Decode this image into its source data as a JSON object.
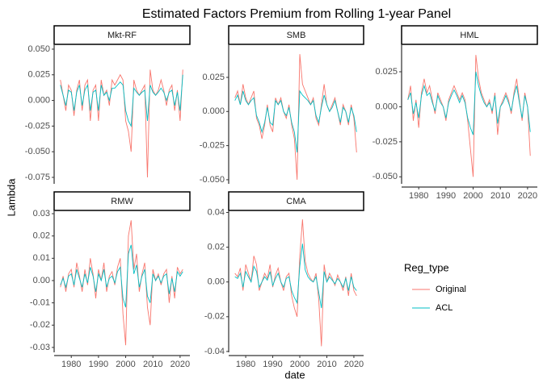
{
  "title": "Estimated Factors Premium from Rolling 1-year Panel",
  "x_label": "date",
  "y_label": "Lambda",
  "legend_title": "Reg_type",
  "chart_data": [
    {
      "type": "line",
      "title": "Mkt-RF",
      "xlim": [
        1973.7,
        2023.6
      ],
      "ylim": [
        -0.0813,
        0.0539
      ],
      "yticks": [
        {
          "value": 0.05,
          "label": "0.050"
        },
        0.025,
        {
          "value": 0,
          "label": "0.000"
        },
        -0.025,
        {
          "value": -0.05,
          "label": "-0.050"
        },
        -0.075
      ],
      "x": [
        1976,
        1977,
        1978,
        1979,
        1980,
        1981,
        1982,
        1983,
        1984,
        1985,
        1986,
        1987,
        1988,
        1989,
        1990,
        1991,
        1992,
        1993,
        1994,
        1995,
        1996,
        1997,
        1998,
        1999,
        2000,
        2001,
        2002,
        2003,
        2004,
        2005,
        2006,
        2007,
        2008,
        2009,
        2010,
        2011,
        2012,
        2013,
        2014,
        2015,
        2016,
        2017,
        2018,
        2019,
        2020,
        2021
      ],
      "series": [
        {
          "name": "Original",
          "color": "#F8766D",
          "values": [
            0.02,
            0.005,
            -0.01,
            0.015,
            0.01,
            -0.015,
            0.01,
            0.02,
            -0.01,
            0.015,
            0.02,
            -0.02,
            0.01,
            0.015,
            -0.02,
            0.02,
            0.005,
            0.01,
            -0.005,
            0.02,
            0.015,
            0.02,
            0.025,
            0.02,
            -0.02,
            -0.03,
            -0.05,
            0.02,
            0.01,
            0.005,
            0.01,
            0.015,
            -0.075,
            0.03,
            0.01,
            0.005,
            0.01,
            0.02,
            0.01,
            -0.005,
            0.01,
            0.015,
            -0.01,
            0.01,
            -0.02,
            0.03
          ]
        },
        {
          "name": "ACL",
          "color": "#00BFC4",
          "values": [
            0.015,
            0.005,
            -0.005,
            0.01,
            0.008,
            -0.01,
            0.008,
            0.015,
            -0.005,
            0.01,
            0.015,
            -0.01,
            0.008,
            0.01,
            -0.01,
            0.015,
            0.005,
            0.008,
            0,
            0.012,
            0.012,
            0.015,
            0.018,
            0.015,
            -0.01,
            -0.02,
            -0.025,
            0.012,
            0.008,
            0.005,
            0.008,
            0.01,
            -0.02,
            0.015,
            0.008,
            0.005,
            0.008,
            0.012,
            0.008,
            0,
            0.008,
            0.01,
            -0.005,
            0.008,
            -0.01,
            0.025
          ]
        }
      ]
    },
    {
      "type": "line",
      "title": "SMB",
      "xlim": [
        1973.7,
        2023.6
      ],
      "ylim": [
        -0.053,
        0.0486
      ],
      "yticks": [
        0.025,
        {
          "value": 0,
          "label": "0.000"
        },
        -0.025,
        {
          "value": -0.05,
          "label": "-0.050"
        }
      ],
      "x": [
        1976,
        1977,
        1978,
        1979,
        1980,
        1981,
        1982,
        1983,
        1984,
        1985,
        1986,
        1987,
        1988,
        1989,
        1990,
        1991,
        1992,
        1993,
        1994,
        1995,
        1996,
        1997,
        1998,
        1999,
        2000,
        2001,
        2002,
        2003,
        2004,
        2005,
        2006,
        2007,
        2008,
        2009,
        2010,
        2011,
        2012,
        2013,
        2014,
        2015,
        2016,
        2017,
        2018,
        2019,
        2020,
        2021
      ],
      "series": [
        {
          "name": "Original",
          "color": "#F8766D",
          "values": [
            0.01,
            0.015,
            0.005,
            0.02,
            0.01,
            0.005,
            0.01,
            0.015,
            -0.005,
            -0.01,
            -0.02,
            -0.01,
            0.005,
            -0.01,
            -0.015,
            0.01,
            0.005,
            0.01,
            0,
            -0.005,
            0.005,
            -0.01,
            -0.02,
            -0.05,
            0.042,
            0.02,
            0.015,
            0.01,
            0.005,
            0.01,
            -0.005,
            -0.01,
            0.005,
            0.02,
            0.005,
            0,
            0.005,
            0.01,
            0,
            -0.01,
            0.005,
            0,
            -0.01,
            0.005,
            -0.005,
            -0.03
          ]
        },
        {
          "name": "ACL",
          "color": "#00BFC4",
          "values": [
            0.008,
            0.012,
            0.005,
            0.015,
            0.008,
            0.005,
            0.008,
            0.01,
            -0.003,
            -0.008,
            -0.015,
            -0.008,
            0.003,
            -0.008,
            -0.01,
            0.008,
            0.005,
            0.008,
            0,
            -0.003,
            0.003,
            -0.008,
            -0.015,
            -0.03,
            0.015,
            0.012,
            0.01,
            0.008,
            0.005,
            0.008,
            -0.003,
            -0.008,
            0.003,
            0.012,
            0.005,
            0,
            0.003,
            0.008,
            0,
            -0.008,
            0.003,
            0,
            -0.008,
            0.003,
            -0.003,
            -0.015
          ]
        }
      ]
    },
    {
      "type": "line",
      "title": "HML",
      "xlim": [
        1973.7,
        2023.6
      ],
      "ylim": [
        -0.055,
        0.044
      ],
      "yticks": [
        0.025,
        {
          "value": 0,
          "label": "0.000"
        },
        -0.025,
        {
          "value": -0.05,
          "label": "-0.050"
        }
      ],
      "xticks": [
        1980,
        1990,
        2000,
        2010,
        2020
      ],
      "x": [
        1976,
        1977,
        1978,
        1979,
        1980,
        1981,
        1982,
        1983,
        1984,
        1985,
        1986,
        1987,
        1988,
        1989,
        1990,
        1991,
        1992,
        1993,
        1994,
        1995,
        1996,
        1997,
        1998,
        1999,
        2000,
        2001,
        2002,
        2003,
        2004,
        2005,
        2006,
        2007,
        2008,
        2009,
        2010,
        2011,
        2012,
        2013,
        2014,
        2015,
        2016,
        2017,
        2018,
        2019,
        2020,
        2021
      ],
      "series": [
        {
          "name": "Original",
          "color": "#F8766D",
          "values": [
            0.005,
            0.015,
            -0.01,
            0.005,
            -0.015,
            0.01,
            0.02,
            0.01,
            0.015,
            0.005,
            -0.005,
            0.01,
            0.005,
            0,
            -0.01,
            0.005,
            0.01,
            0.015,
            0.01,
            0.005,
            0.01,
            0.005,
            -0.01,
            -0.03,
            -0.05,
            0.037,
            0.02,
            0.01,
            0.005,
            0,
            0.005,
            -0.005,
            0.01,
            -0.02,
            0,
            0.005,
            0.01,
            0.005,
            -0.005,
            0.01,
            0.02,
            0.005,
            -0.01,
            0.01,
            0,
            -0.035
          ]
        },
        {
          "name": "ACL",
          "color": "#00BFC4",
          "values": [
            0.005,
            0.01,
            -0.005,
            0.003,
            -0.008,
            0.008,
            0.015,
            0.008,
            0.01,
            0.003,
            -0.003,
            0.008,
            0.003,
            0,
            -0.008,
            0.003,
            0.008,
            0.012,
            0.008,
            0.003,
            0.008,
            0.003,
            -0.008,
            -0.015,
            -0.02,
            0.025,
            0.015,
            0.008,
            0.003,
            0,
            0.003,
            -0.003,
            0.008,
            -0.012,
            0,
            0.003,
            0.008,
            0.003,
            -0.003,
            0.008,
            0.015,
            0.003,
            -0.008,
            0.008,
            0,
            -0.018
          ]
        }
      ]
    },
    {
      "type": "line",
      "title": "RMW",
      "xlim": [
        1973.7,
        2023.6
      ],
      "ylim": [
        -0.0322,
        0.0311
      ],
      "yticks": [
        0.03,
        0.02,
        0.01,
        {
          "value": 0,
          "label": "0.00"
        },
        -0.01,
        -0.02,
        -0.03
      ],
      "xticks": [
        1980,
        1990,
        2000,
        2010,
        2020
      ],
      "x": [
        1976,
        1977,
        1978,
        1979,
        1980,
        1981,
        1982,
        1983,
        1984,
        1985,
        1986,
        1987,
        1988,
        1989,
        1990,
        1991,
        1992,
        1993,
        1994,
        1995,
        1996,
        1997,
        1998,
        1999,
        2000,
        2001,
        2002,
        2003,
        2004,
        2005,
        2006,
        2007,
        2008,
        2009,
        2010,
        2011,
        2012,
        2013,
        2014,
        2015,
        2016,
        2017,
        2018,
        2019,
        2020,
        2021
      ],
      "series": [
        {
          "name": "Original",
          "color": "#F8766D",
          "values": [
            -0.003,
            0.002,
            -0.005,
            0.003,
            0.005,
            -0.003,
            0.008,
            0.002,
            -0.005,
            0.005,
            -0.002,
            0.01,
            0.003,
            -0.008,
            0.005,
            0,
            0.008,
            -0.005,
            0.002,
            0.004,
            -0.002,
            0.006,
            0.01,
            -0.015,
            -0.029,
            0.02,
            0.027,
            0.005,
            0.012,
            -0.005,
            0.003,
            0.008,
            -0.012,
            -0.02,
            0.005,
            0,
            0.003,
            -0.002,
            0.003,
            0.005,
            -0.01,
            0.002,
            -0.008,
            0.006,
            0.003,
            0.005
          ]
        },
        {
          "name": "ACL",
          "color": "#00BFC4",
          "values": [
            -0.002,
            0.001,
            -0.003,
            0.002,
            0.003,
            -0.002,
            0.005,
            0.001,
            -0.003,
            0.003,
            -0.001,
            0.006,
            0.002,
            -0.005,
            0.003,
            0,
            0.005,
            -0.003,
            0.001,
            0.002,
            -0.001,
            0.004,
            0.006,
            -0.008,
            -0.012,
            0.012,
            0.016,
            0.003,
            0.007,
            -0.003,
            0.002,
            0.005,
            -0.007,
            -0.01,
            0.003,
            0,
            0.002,
            -0.001,
            0.002,
            0.003,
            -0.006,
            0.001,
            -0.005,
            0.004,
            0.002,
            0.004
          ]
        }
      ]
    },
    {
      "type": "line",
      "title": "CMA",
      "xlim": [
        1973.7,
        2023.6
      ],
      "ylim": [
        -0.0405,
        0.0407
      ],
      "yticks": [
        0.04,
        0.02,
        {
          "value": 0,
          "label": "0.00"
        },
        -0.02,
        -0.04
      ],
      "xticks": [
        1980,
        1990,
        2000,
        2010,
        2020
      ],
      "x": [
        1976,
        1977,
        1978,
        1979,
        1980,
        1981,
        1982,
        1983,
        1984,
        1985,
        1986,
        1987,
        1988,
        1989,
        1990,
        1991,
        1992,
        1993,
        1994,
        1995,
        1996,
        1997,
        1998,
        1999,
        2000,
        2001,
        2002,
        2003,
        2004,
        2005,
        2006,
        2007,
        2008,
        2009,
        2010,
        2011,
        2012,
        2013,
        2014,
        2015,
        2016,
        2017,
        2018,
        2019,
        2020,
        2021
      ],
      "series": [
        {
          "name": "Original",
          "color": "#F8766D",
          "values": [
            0.005,
            0.003,
            0.008,
            -0.005,
            0.01,
            0.005,
            0,
            0.015,
            0.01,
            -0.005,
            0,
            0.005,
            0.002,
            0.01,
            -0.003,
            0.004,
            0.008,
            0,
            -0.005,
            0.003,
            0.005,
            -0.008,
            -0.015,
            -0.02,
            0.015,
            0.036,
            0.012,
            0.005,
            0.002,
            0,
            0.005,
            -0.01,
            -0.037,
            0.01,
            0,
            0.005,
            0.002,
            -0.002,
            0.004,
            0,
            -0.005,
            0.003,
            -0.008,
            0.005,
            -0.005,
            -0.008
          ]
        },
        {
          "name": "ACL",
          "color": "#00BFC4",
          "values": [
            0.003,
            0.002,
            0.005,
            -0.003,
            0.006,
            0.003,
            0,
            0.009,
            0.006,
            -0.003,
            0,
            0.003,
            0.001,
            0.006,
            -0.002,
            0.002,
            0.005,
            0,
            -0.003,
            0.002,
            0.003,
            -0.005,
            -0.009,
            -0.012,
            0.009,
            0.022,
            0.007,
            0.003,
            0.001,
            0,
            0.003,
            -0.006,
            -0.015,
            0.006,
            0,
            0.003,
            0.001,
            -0.001,
            0.002,
            0,
            -0.003,
            0.002,
            -0.005,
            0.003,
            -0.003,
            -0.005
          ]
        }
      ]
    }
  ]
}
